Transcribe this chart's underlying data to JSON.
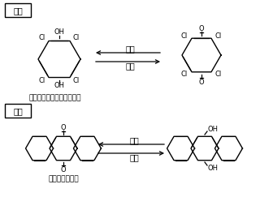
{
  "bg_color": "#ffffff",
  "label_positive": "正極",
  "label_negative": "負極",
  "label_discharge": "放電",
  "label_charge": "充電",
  "label_tchl": "テトラクロロヒドロキノン",
  "label_anthraquinone": "アントラキノン",
  "font_size_box": 7,
  "font_size_arrow": 7,
  "font_size_atom": 6,
  "font_size_name": 6.5
}
